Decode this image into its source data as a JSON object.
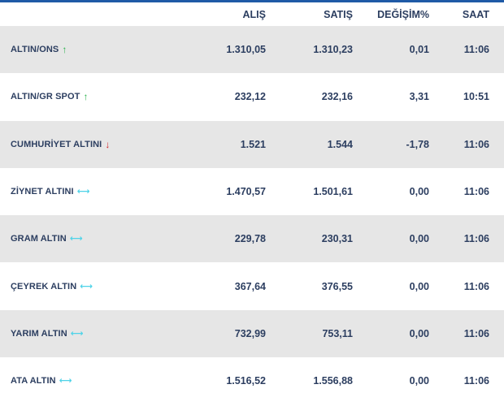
{
  "header": {
    "buy": "ALIŞ",
    "sell": "SATIŞ",
    "change": "DEĞİŞİM%",
    "time": "SAAT"
  },
  "colors": {
    "accent_border": "#1f5aa6",
    "text": "#2c3e60",
    "row_alt": "#e6e6e6",
    "up": "#2bb24c",
    "down": "#d0262b",
    "flat": "#4fd3e8"
  },
  "rows": [
    {
      "name": "ALTIN/ONS",
      "trend": "arrow-up-icon",
      "buy": "1.310,05",
      "sell": "1.310,23",
      "change": "0,01",
      "time": "11:06"
    },
    {
      "name": "ALTIN/GR SPOT",
      "trend": "arrow-up-icon",
      "buy": "232,12",
      "sell": "232,16",
      "change": "3,31",
      "time": "10:51"
    },
    {
      "name": "CUMHURİYET ALTINI",
      "trend": "arrow-down-icon",
      "buy": "1.521",
      "sell": "1.544",
      "change": "-1,78",
      "time": "11:06"
    },
    {
      "name": "ZİYNET ALTINI",
      "trend": "arrow-flat-icon",
      "buy": "1.470,57",
      "sell": "1.501,61",
      "change": "0,00",
      "time": "11:06"
    },
    {
      "name": "GRAM ALTIN",
      "trend": "arrow-flat-icon",
      "buy": "229,78",
      "sell": "230,31",
      "change": "0,00",
      "time": "11:06"
    },
    {
      "name": "ÇEYREK ALTIN",
      "trend": "arrow-flat-icon",
      "buy": "367,64",
      "sell": "376,55",
      "change": "0,00",
      "time": "11:06"
    },
    {
      "name": "YARIM ALTIN",
      "trend": "arrow-flat-icon",
      "buy": "732,99",
      "sell": "753,11",
      "change": "0,00",
      "time": "11:06"
    },
    {
      "name": "ATA ALTIN",
      "trend": "arrow-flat-icon",
      "buy": "1.516,52",
      "sell": "1.556,88",
      "change": "0,00",
      "time": "11:06"
    }
  ]
}
